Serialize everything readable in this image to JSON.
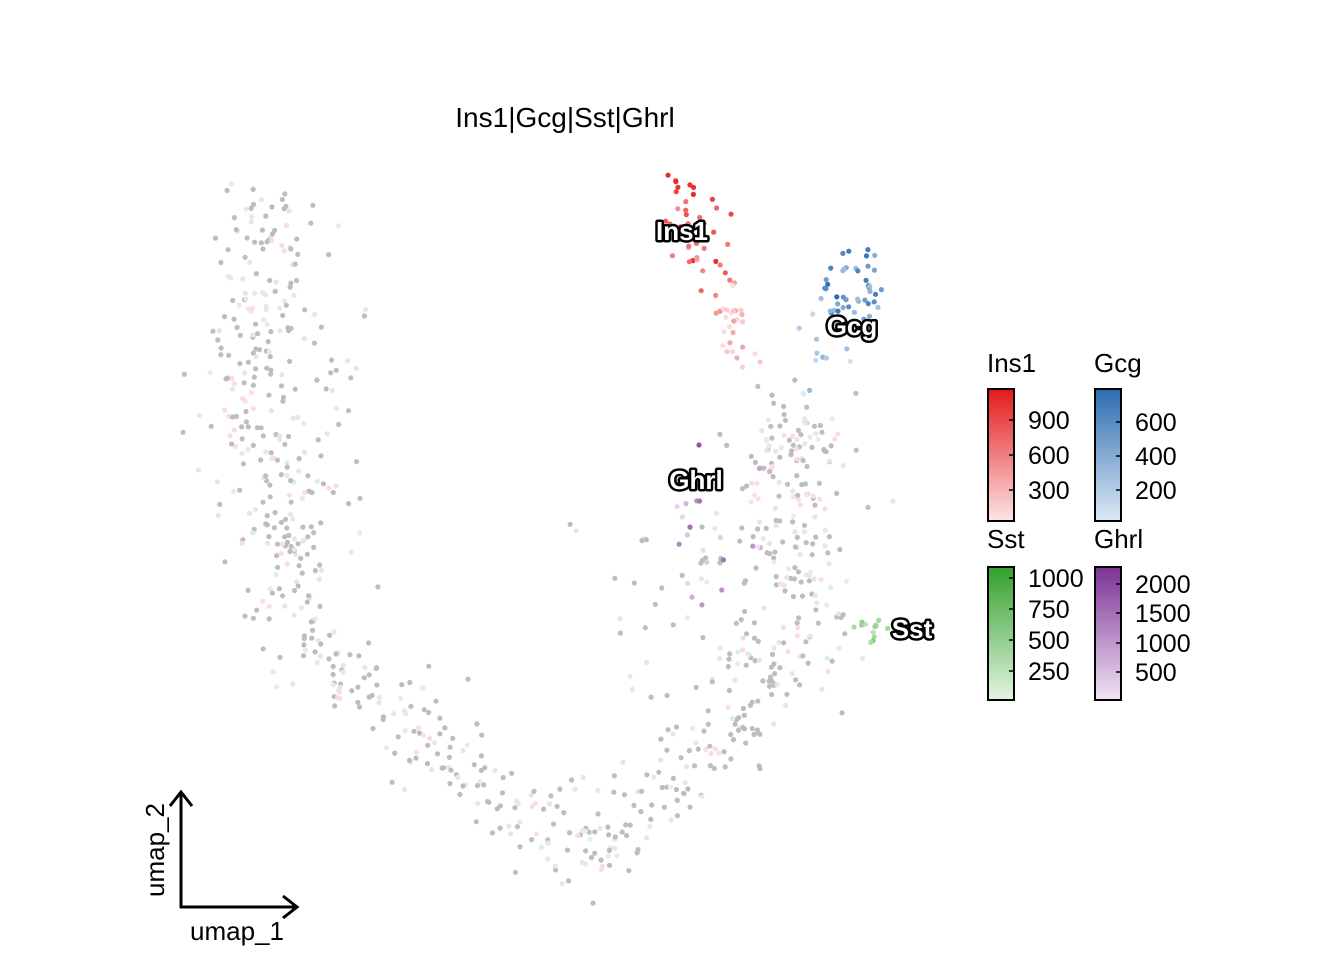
{
  "chart_data": {
    "type": "scatter",
    "title": "Ins1|Gcg|Sst|Ghrl",
    "xlabel": "umap_1",
    "ylabel": "umap_2",
    "grid": false,
    "axes_style": "arrows only, no ticks",
    "background_color": "#bdbdbd",
    "features": [
      {
        "name": "Ins1",
        "color": "#e41a1c",
        "low_color": "#fbdbdc",
        "legend_ticks": [
          "900",
          "600",
          "300"
        ],
        "label": "Ins1"
      },
      {
        "name": "Gcg",
        "color": "#2c6db0",
        "low_color": "#d8e6f5",
        "legend_ticks": [
          "600",
          "400",
          "200"
        ],
        "label": "Gcg"
      },
      {
        "name": "Sst",
        "color": "#33a02c",
        "low_color": "#def2dc",
        "legend_ticks": [
          "1000",
          "750",
          "500",
          "250"
        ],
        "label": "Sst"
      },
      {
        "name": "Ghrl",
        "color": "#7b3294",
        "low_color": "#eedff2",
        "legend_ticks": [
          "2000",
          "1500",
          "1000",
          "500"
        ],
        "label": "Ghrl"
      }
    ],
    "legend_placement": "right",
    "approx_cell_count": 1000
  }
}
